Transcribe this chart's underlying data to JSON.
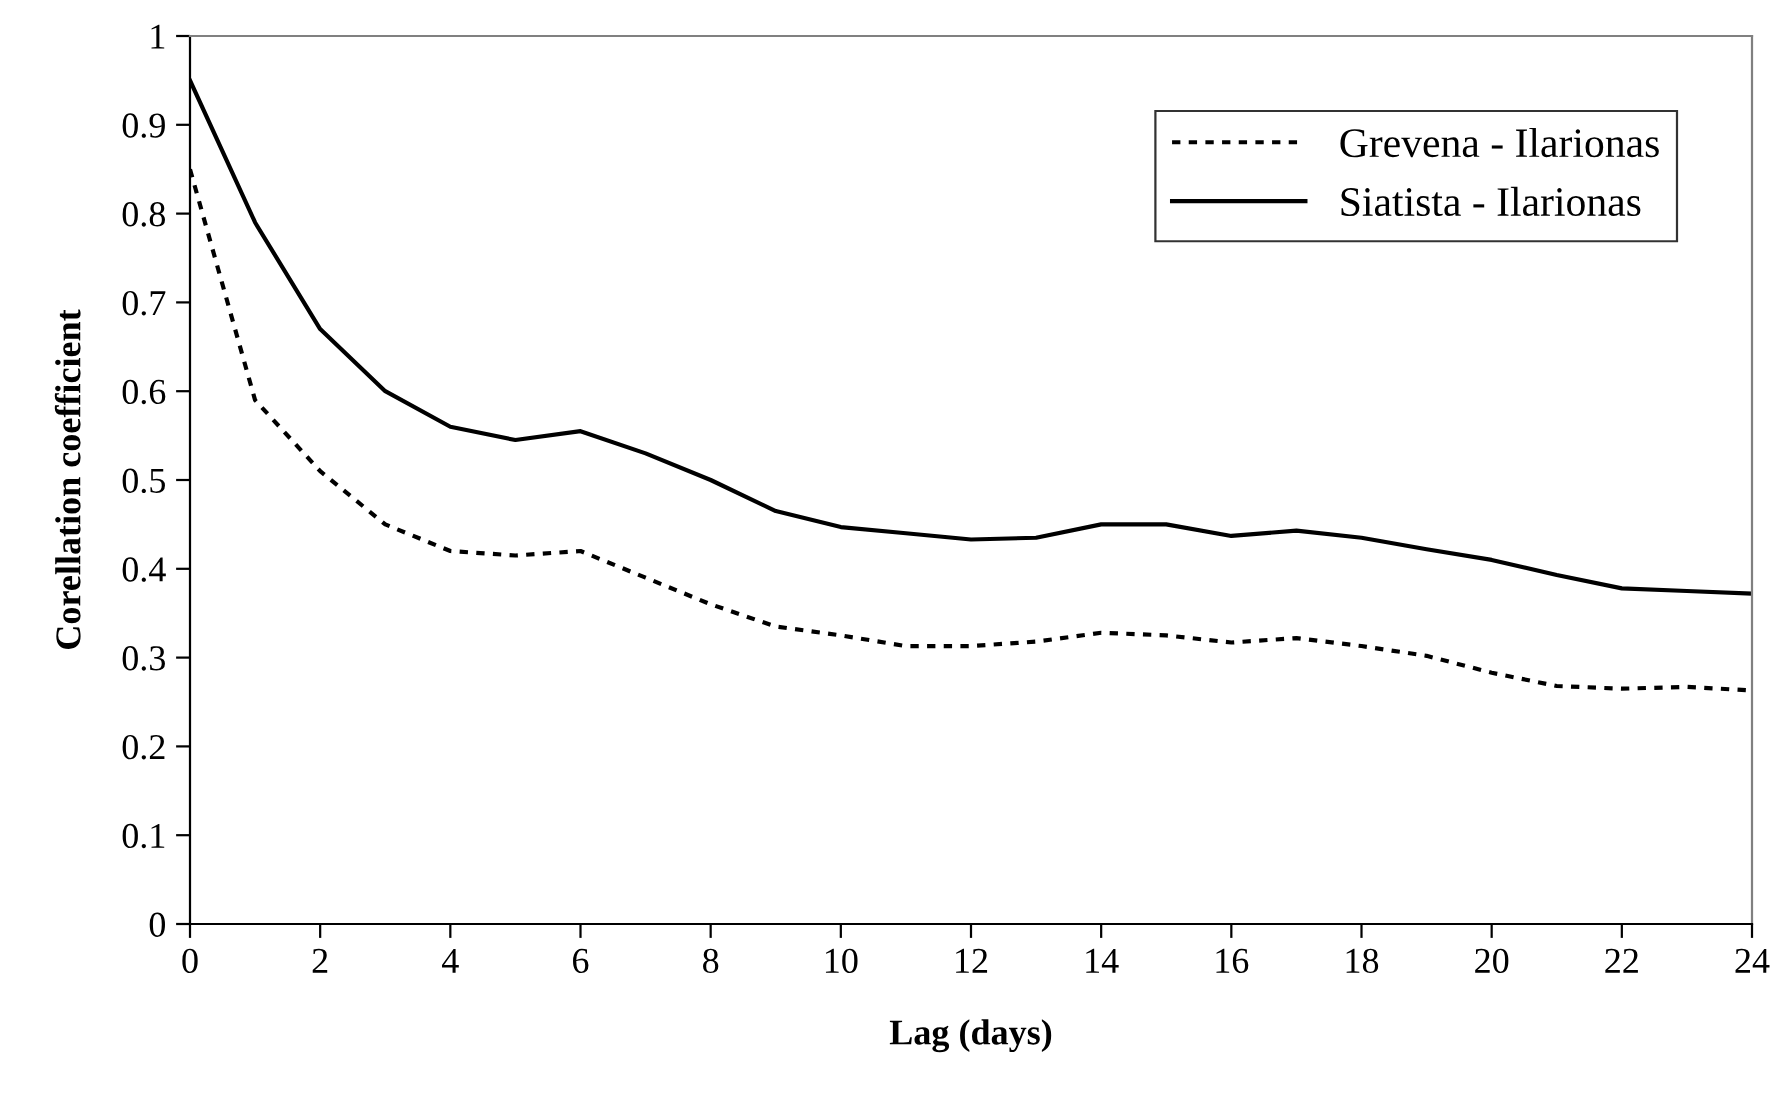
{
  "chart_data": {
    "type": "line",
    "xlabel": "Lag (days)",
    "ylabel": "Corellation coefficient",
    "x": [
      0,
      1,
      2,
      3,
      4,
      5,
      6,
      7,
      8,
      9,
      10,
      11,
      12,
      13,
      14,
      15,
      16,
      17,
      18,
      19,
      20,
      21,
      22,
      23,
      24
    ],
    "series": [
      {
        "name": "Grevena - Ilarionas",
        "color": "#000000",
        "line_style": "dotted",
        "values": [
          0.85,
          0.59,
          0.51,
          0.45,
          0.42,
          0.415,
          0.42,
          0.39,
          0.36,
          0.335,
          0.325,
          0.313,
          0.313,
          0.318,
          0.328,
          0.325,
          0.317,
          0.322,
          0.313,
          0.302,
          0.283,
          0.268,
          0.265,
          0.267,
          0.263
        ]
      },
      {
        "name": "Siatista - Ilarionas",
        "color": "#000000",
        "line_style": "solid",
        "values": [
          0.95,
          0.79,
          0.67,
          0.6,
          0.56,
          0.545,
          0.555,
          0.53,
          0.5,
          0.465,
          0.447,
          0.44,
          0.433,
          0.435,
          0.45,
          0.45,
          0.437,
          0.443,
          0.435,
          0.422,
          0.41,
          0.393,
          0.378,
          0.375,
          0.372
        ]
      }
    ],
    "xlim": [
      0,
      24
    ],
    "xticks": [
      0,
      2,
      4,
      6,
      8,
      10,
      12,
      14,
      16,
      18,
      20,
      22,
      24
    ],
    "ylim": [
      0,
      1
    ],
    "yticks": [
      0,
      0.1,
      0.2,
      0.3,
      0.4,
      0.5,
      0.6,
      0.7,
      0.8,
      0.9,
      1
    ],
    "grid": false,
    "legend": "top right",
    "marker": "none"
  }
}
